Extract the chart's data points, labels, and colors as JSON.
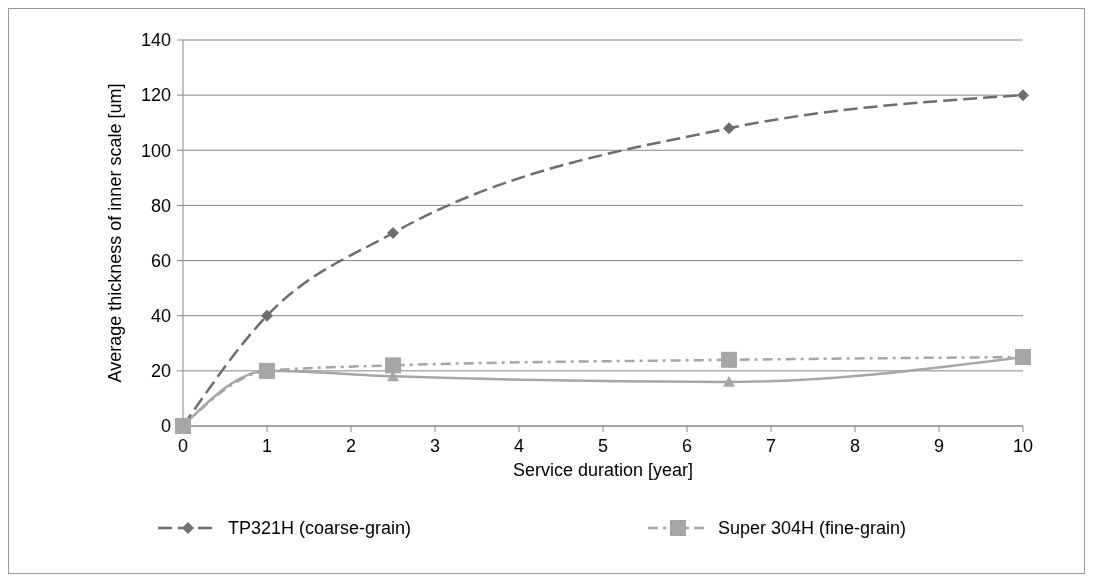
{
  "chart_data": {
    "type": "line",
    "xlabel": "Service duration [year]",
    "ylabel": "Average thickness of inner scale [um]",
    "x": [
      0,
      1,
      2.5,
      6.5,
      10
    ],
    "series": [
      {
        "name": "TP321H (coarse-grain)",
        "color": "#6e6e6e",
        "values": [
          0,
          40,
          70,
          108,
          120
        ],
        "marker": "diamond",
        "line_style": "dashed"
      },
      {
        "name": "Super 304H (fine-grain)",
        "color": "#a6a6a6",
        "values": [
          0,
          20,
          22,
          24,
          25
        ],
        "marker": "square",
        "line_style": "dashdot"
      },
      {
        "color": "#a6a6a6",
        "values": [
          0,
          20,
          18,
          16,
          25
        ],
        "marker": "triangle",
        "line_style": "solid"
      }
    ],
    "xlim": [
      0,
      10
    ],
    "xticks": [
      0,
      1,
      2,
      3,
      4,
      5,
      6,
      7,
      8,
      9,
      10
    ],
    "ylim": [
      0,
      140
    ],
    "yticks": [
      0,
      20,
      40,
      60,
      80,
      100,
      120,
      140
    ],
    "grid": "y",
    "legend": "bottom"
  }
}
